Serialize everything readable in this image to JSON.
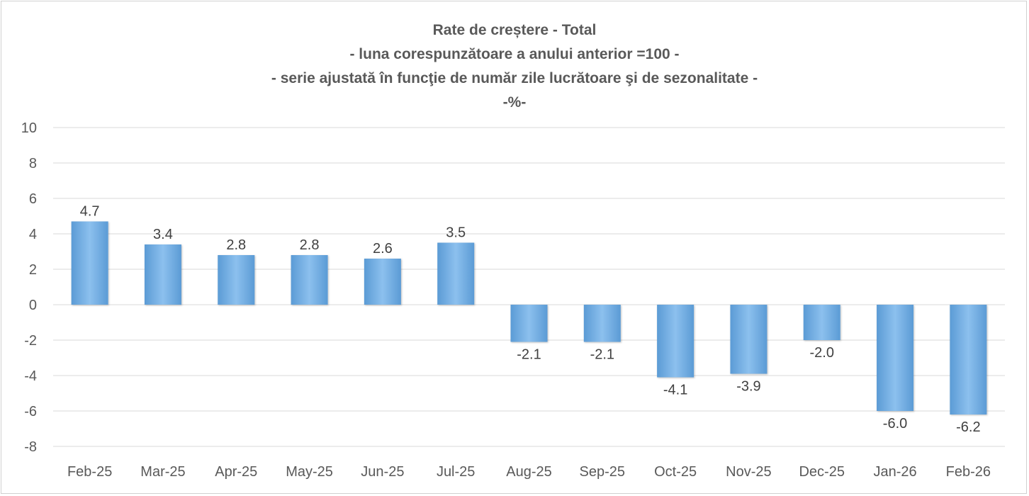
{
  "chart_data": {
    "type": "bar",
    "title": "Rate de creștere - Total",
    "subtitle_lines": [
      "- luna corespunzătoare a anului anterior =100 -",
      "- serie ajustată în funcţie de număr zile lucrătoare şi de sezonalitate -",
      "-%-"
    ],
    "categories": [
      "Feb-25",
      "Mar-25",
      "Apr-25",
      "May-25",
      "Jun-25",
      "Jul-25",
      "Aug-25",
      "Sep-25",
      "Oct-25",
      "Nov-25",
      "Dec-25",
      "Jan-26",
      "Feb-26"
    ],
    "values": [
      4.7,
      3.4,
      2.8,
      2.8,
      2.6,
      3.5,
      -2.1,
      -2.1,
      -4.1,
      -3.9,
      -2.0,
      -6.0,
      -6.2
    ],
    "data_labels": [
      "4.7",
      "3.4",
      "2.8",
      "2.8",
      "2.6",
      "3.5",
      "-2.1",
      "-2.1",
      "-4.1",
      "-3.9",
      "-2.0",
      "-6.0",
      "-6.2"
    ],
    "y_ticks": [
      10,
      8,
      6,
      4,
      2,
      0,
      -2,
      -4,
      -6,
      -8
    ],
    "ylim": [
      -8,
      10
    ],
    "xlabel": "",
    "ylabel": "",
    "grid": true,
    "legend": "none",
    "bar_color": "#5b9bd5",
    "bar_color_light": "#8cc0ee",
    "gridline_color": "#d9d9d9"
  }
}
